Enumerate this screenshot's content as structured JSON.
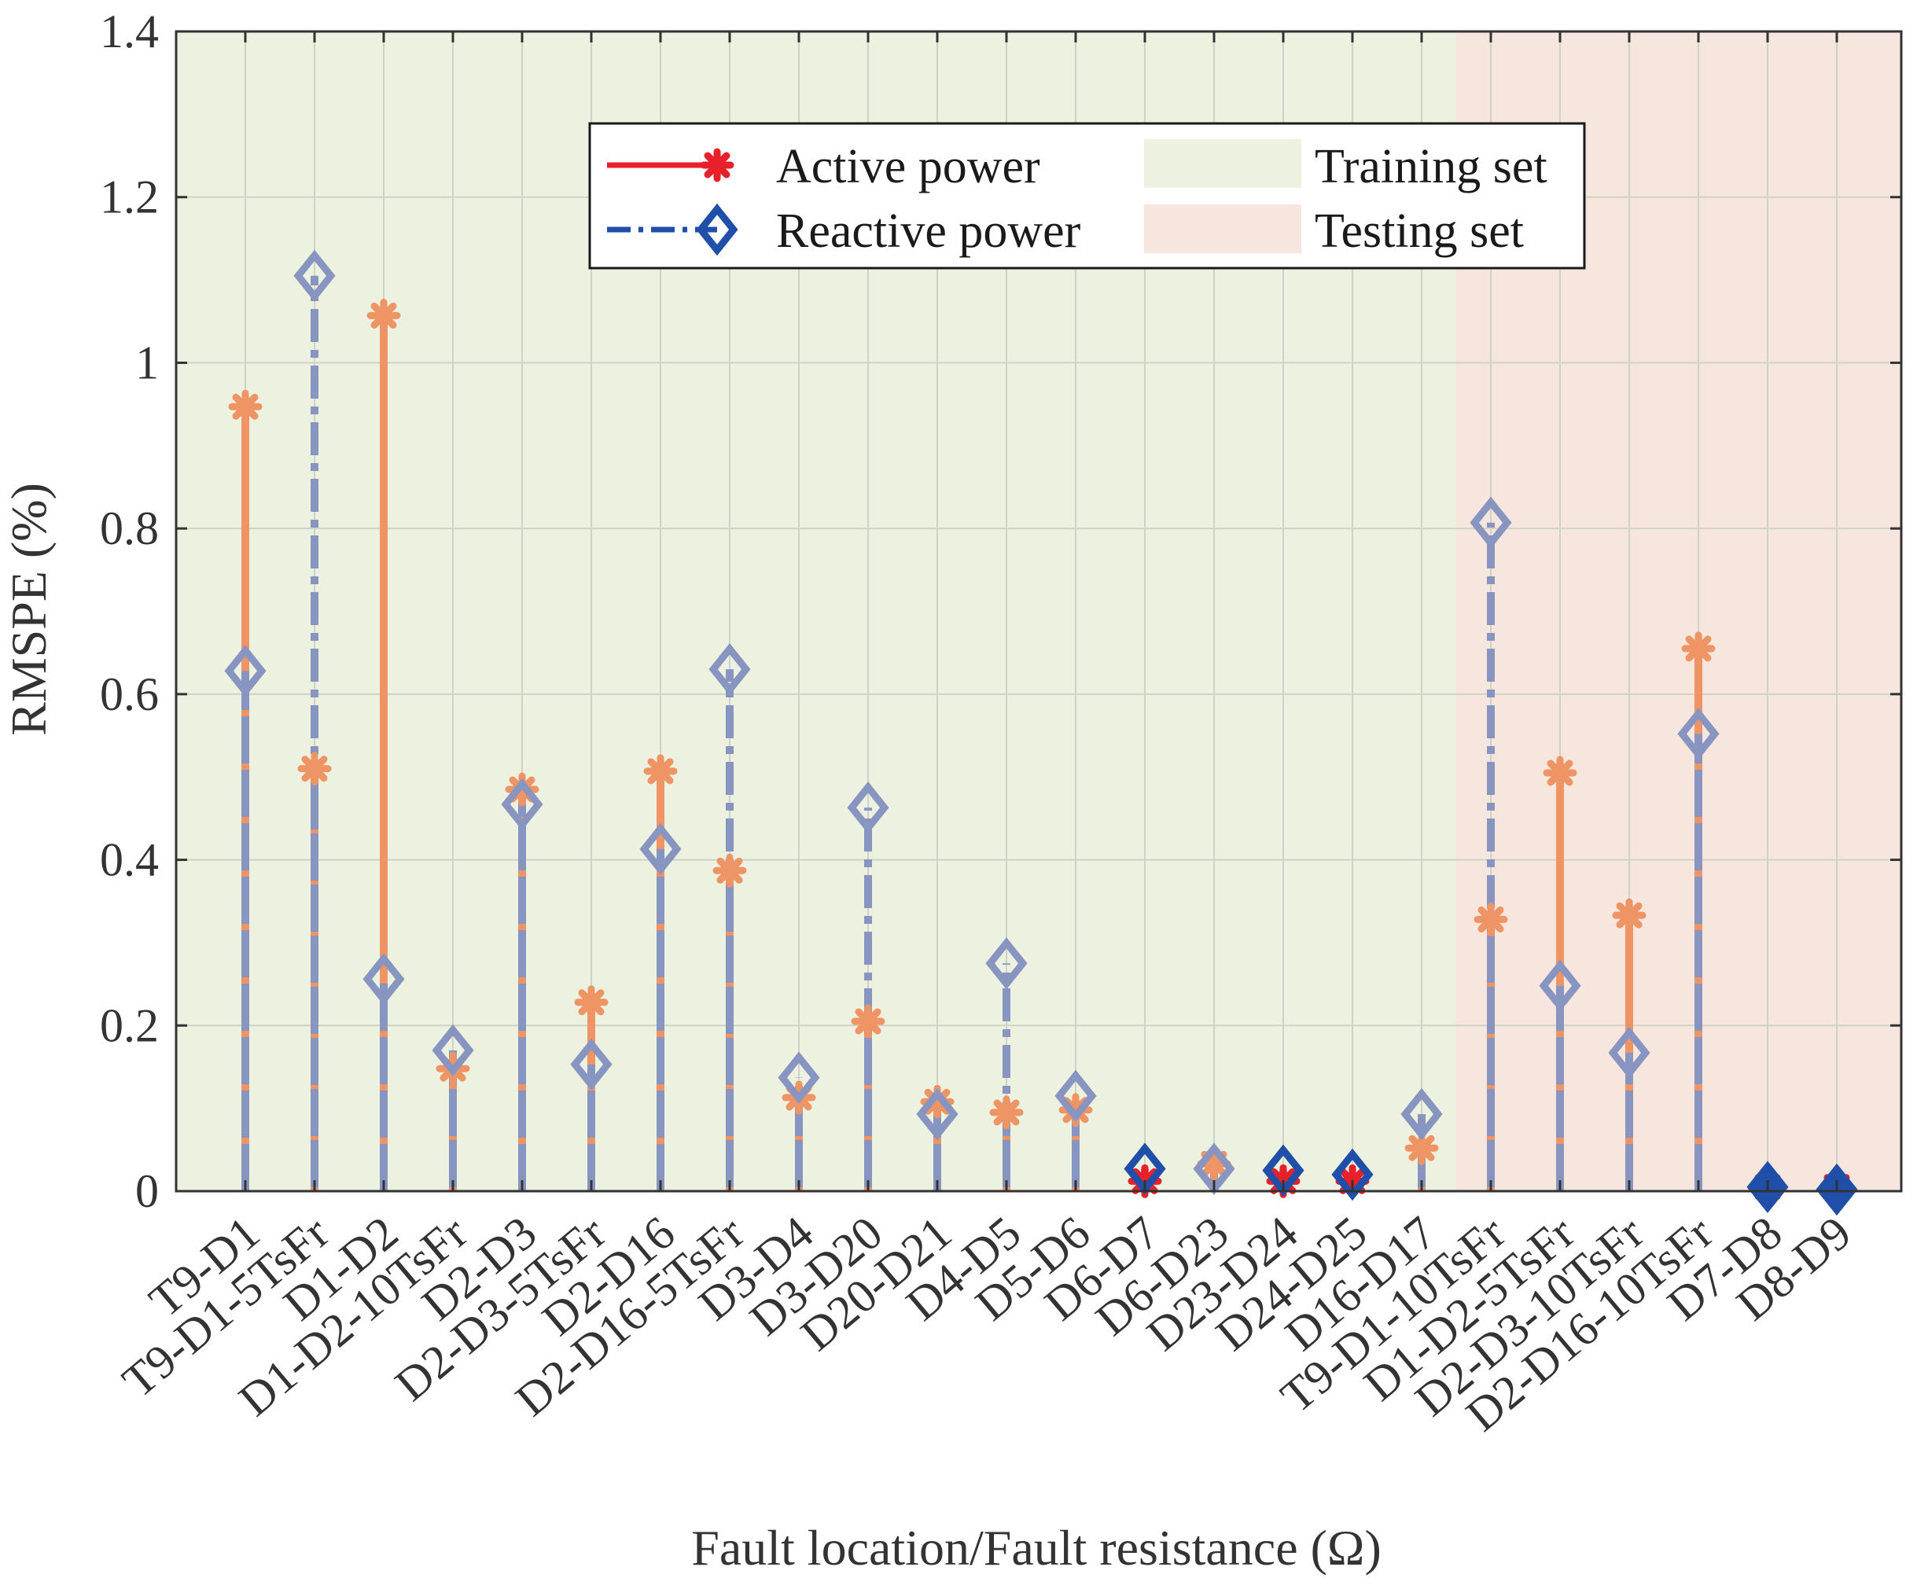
{
  "chart_data": {
    "type": "stem",
    "title": "",
    "xlabel": "Fault location/Fault resistance (Ω)",
    "ylabel": "RMSPE (%)",
    "ylim": [
      0,
      1.4
    ],
    "yticks": [
      "0",
      "0.2",
      "0.4",
      "0.6",
      "0.8",
      "1",
      "1.2",
      "1.4"
    ],
    "ytick_values": [
      0,
      0.2,
      0.4,
      0.6,
      0.8,
      1.0,
      1.2,
      1.4
    ],
    "grid": true,
    "categories": [
      "T9-D1",
      "T9-D1-5TsFr",
      "D1-D2",
      "D1-D2-10TsFr",
      "D2-D3",
      "D2-D3-5TsFr",
      "D2-D16",
      "D2-D16-5TsFr",
      "D3-D4",
      "D3-D20",
      "D20-D21",
      "D4-D5",
      "D5-D6",
      "D6-D7",
      "D6-D23",
      "D23-D24",
      "D24-D25",
      "D16-D17",
      "T9-D1-10TsFr",
      "D1-D2-5TsFr",
      "D2-D3-10TsFr",
      "D2-D16-10TsFr",
      "D7-D8",
      "D8-D9"
    ],
    "series": [
      {
        "name": "Active power",
        "marker": "asterisk",
        "line": "solid",
        "color": "#e8202a",
        "values": [
          0.947,
          0.51,
          1.057,
          0.148,
          0.485,
          0.228,
          0.507,
          0.387,
          0.113,
          0.205,
          0.108,
          0.095,
          0.098,
          0.012,
          0.033,
          0.012,
          0.012,
          0.052,
          0.328,
          0.505,
          0.333,
          0.655,
          0.005,
          0.005
        ]
      },
      {
        "name": "Reactive power",
        "marker": "diamond",
        "line": "dash-dot",
        "color": "#1f4fa8",
        "values": [
          0.628,
          1.105,
          0.256,
          0.17,
          0.467,
          0.153,
          0.413,
          0.63,
          0.137,
          0.463,
          0.093,
          0.275,
          0.115,
          0.027,
          0.027,
          0.025,
          0.02,
          0.093,
          0.807,
          0.248,
          0.167,
          0.552,
          0.005,
          0.002
        ]
      }
    ],
    "regions": [
      {
        "name": "Training set",
        "from_category": "T9-D1",
        "to_category": "D16-D17",
        "color": "#ecf2df"
      },
      {
        "name": "Testing set",
        "from_category": "T9-D1-10TsFr",
        "to_category": "D8-D9",
        "color": "#f6e6dd"
      }
    ],
    "legend_position": "top-center",
    "stem_colors": {
      "active": "#ef9464",
      "reactive": "#8895c0"
    },
    "grid_color": "#cfd3c7",
    "axis_color": "#333333"
  }
}
